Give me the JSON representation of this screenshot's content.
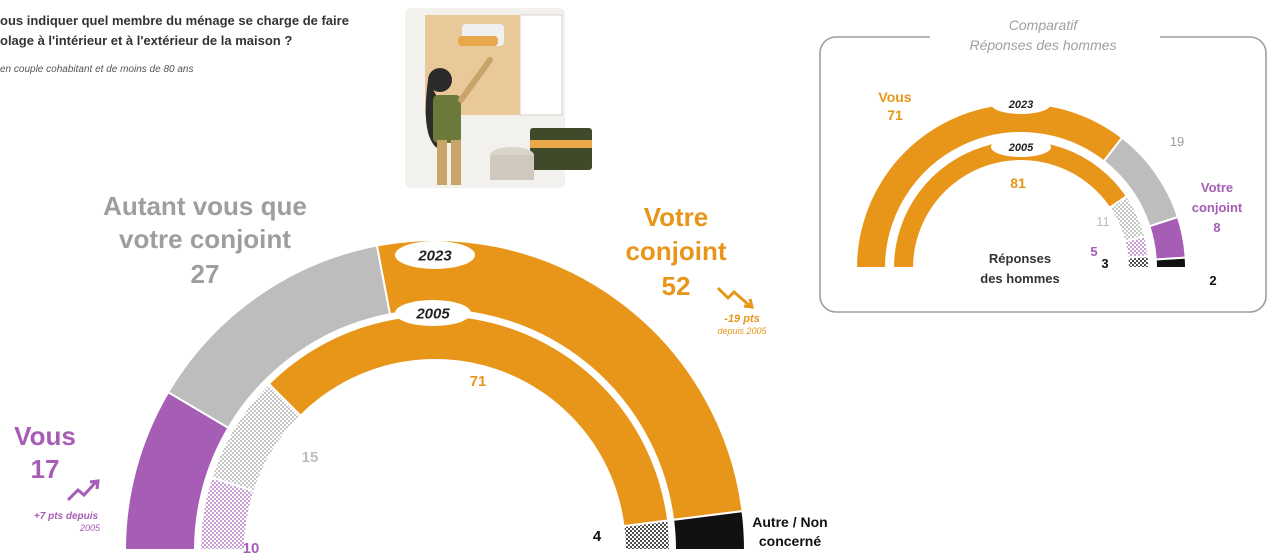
{
  "question": {
    "line1": "ous indiquer quel membre du ménage se charge de faire",
    "line2": "olage à l'intérieur et à l'extérieur de la maison ?",
    "scope": "en couple cohabitant et de moins de 80 ans"
  },
  "colors": {
    "orange": "#E8961A",
    "gray": "#BDBDBD",
    "purple": "#A55DB5",
    "black": "#111111",
    "text_dark": "#222222"
  },
  "chart_data": [
    {
      "type": "pie",
      "subtype": "concentric-half-donut",
      "categories": [
        "Vous",
        "Autant vous que votre conjoint",
        "Votre conjoint",
        "Autre / Non concerné"
      ],
      "series": [
        {
          "name": "2023",
          "values": [
            17,
            27,
            52,
            4
          ]
        },
        {
          "name": "2005",
          "values": [
            10,
            15,
            71,
            4
          ]
        }
      ],
      "labels": {
        "vous": "Vous",
        "autant_line1": "Autant vous que",
        "autant_line2": "votre conjoint",
        "conjoint_line1": "Votre",
        "conjoint_line2": "conjoint",
        "autre_line1": "Autre / Non",
        "autre_line2": "concerné"
      },
      "annotations": {
        "vous_trend_line1": "+7 pts depuis",
        "vous_trend_line2": "2005",
        "conjoint_trend_line1": "-19 pts",
        "conjoint_trend_line2": "depuis 2005"
      },
      "value_labels": {
        "vous_2023": "17",
        "vous_2005": "10",
        "autant_2023": "27",
        "autant_2005": "15",
        "conjoint_2023": "52",
        "conjoint_2005": "71",
        "autre": "4"
      }
    },
    {
      "type": "pie",
      "subtype": "concentric-half-donut",
      "title_line1": "Comparatif",
      "title_line2": "Réponses des hommes",
      "center_line1": "Réponses",
      "center_line2": "des hommes",
      "categories": [
        "Vous",
        "Autant vous que votre conjoint",
        "Votre conjoint",
        "Autre / Non concerné"
      ],
      "series": [
        {
          "name": "2023",
          "values": [
            71,
            19,
            8,
            2
          ]
        },
        {
          "name": "2005",
          "values": [
            81,
            11,
            5,
            3
          ]
        }
      ],
      "labels": {
        "vous": "Vous",
        "conjoint_line1": "Votre",
        "conjoint_line2": "conjoint"
      },
      "value_labels": {
        "vous_2023": "71",
        "vous_2005": "81",
        "autant_2023": "19",
        "autant_2005": "11",
        "conjoint_2023": "8",
        "conjoint_2005": "5",
        "autre_2023": "2",
        "autre_2005": "3"
      }
    }
  ]
}
